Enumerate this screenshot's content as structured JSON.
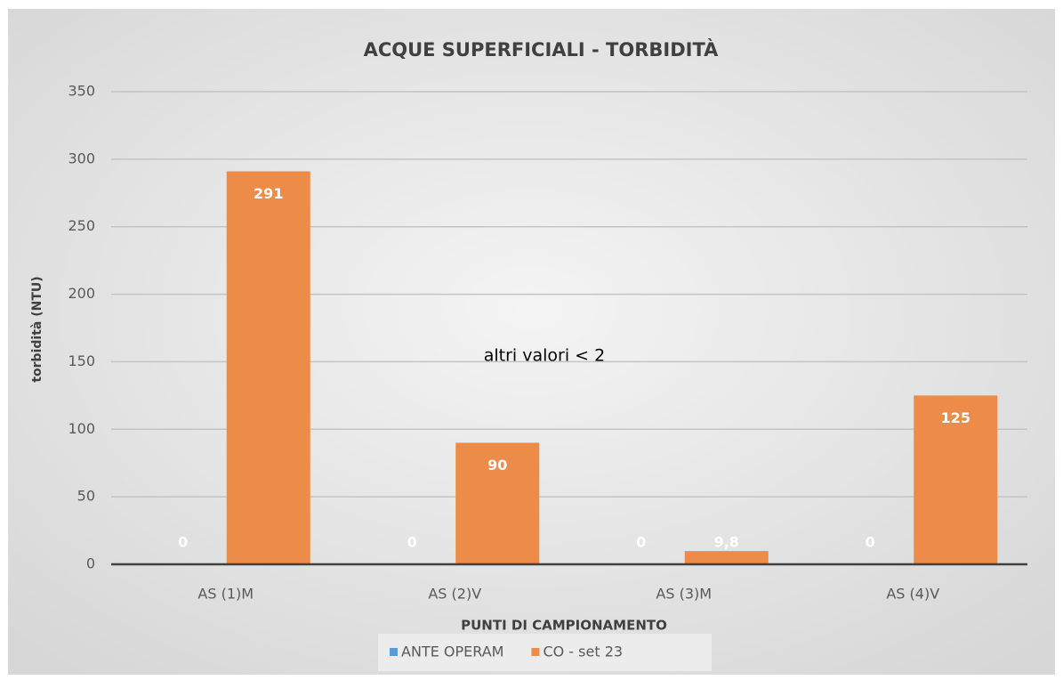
{
  "chart_data": {
    "type": "bar",
    "title": "ACQUE SUPERFICIALI - TORBIDITÀ",
    "annotation": "altri valori < 2",
    "x_label": "PUNTI DI CAMPIONAMENTO",
    "y_label": "torbidità (NTU)",
    "categories": [
      "AS (1)M",
      "AS (2)V",
      "AS (3)M",
      "AS (4)V"
    ],
    "series": [
      {
        "name": "ANTE OPERAM",
        "color": "#5b9bd5",
        "values": [
          0,
          0,
          0,
          0
        ]
      },
      {
        "name": "CO - set 23",
        "color": "#ed8b49",
        "values": [
          291,
          90,
          9.8,
          125
        ],
        "value_labels": [
          "291",
          "90",
          "9,8",
          "125"
        ]
      }
    ],
    "ylim": [
      0,
      350
    ],
    "yticks": [
      0,
      50,
      100,
      150,
      200,
      250,
      300,
      350
    ],
    "grid": true,
    "legend": "bottom"
  }
}
